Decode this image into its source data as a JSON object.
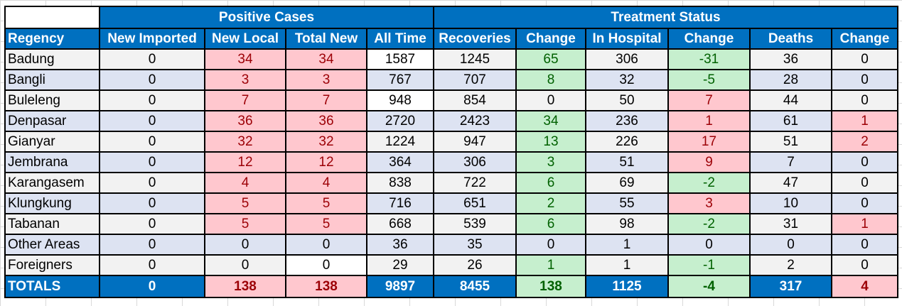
{
  "group_headers": {
    "positive_cases": "Positive Cases",
    "treatment_status": "Treatment Status"
  },
  "columns": [
    "Regency",
    "New Imported",
    "New Local",
    "Total New",
    "All Time",
    "Recoveries",
    "Change",
    "In Hospital",
    "Change",
    "Deaths",
    "Change"
  ],
  "rows": [
    {
      "regency": "Badung",
      "new_imported": "0",
      "new_local": "34",
      "total_new": "34",
      "all_time": "1587",
      "recoveries": "1245",
      "recoveries_change": "65",
      "in_hospital": "306",
      "hospital_change": "-31",
      "deaths": "36",
      "deaths_change": "0"
    },
    {
      "regency": "Bangli",
      "new_imported": "0",
      "new_local": "3",
      "total_new": "3",
      "all_time": "767",
      "recoveries": "707",
      "recoveries_change": "8",
      "in_hospital": "32",
      "hospital_change": "-5",
      "deaths": "28",
      "deaths_change": "0"
    },
    {
      "regency": "Buleleng",
      "new_imported": "0",
      "new_local": "7",
      "total_new": "7",
      "all_time": "948",
      "recoveries": "854",
      "recoveries_change": "0",
      "in_hospital": "50",
      "hospital_change": "7",
      "deaths": "44",
      "deaths_change": "0"
    },
    {
      "regency": "Denpasar",
      "new_imported": "0",
      "new_local": "36",
      "total_new": "36",
      "all_time": "2720",
      "recoveries": "2423",
      "recoveries_change": "34",
      "in_hospital": "236",
      "hospital_change": "1",
      "deaths": "61",
      "deaths_change": "1"
    },
    {
      "regency": "Gianyar",
      "new_imported": "0",
      "new_local": "32",
      "total_new": "32",
      "all_time": "1224",
      "recoveries": "947",
      "recoveries_change": "13",
      "in_hospital": "226",
      "hospital_change": "17",
      "deaths": "51",
      "deaths_change": "2"
    },
    {
      "regency": "Jembrana",
      "new_imported": "0",
      "new_local": "12",
      "total_new": "12",
      "all_time": "364",
      "recoveries": "306",
      "recoveries_change": "3",
      "in_hospital": "51",
      "hospital_change": "9",
      "deaths": "7",
      "deaths_change": "0"
    },
    {
      "regency": "Karangasem",
      "new_imported": "0",
      "new_local": "4",
      "total_new": "4",
      "all_time": "838",
      "recoveries": "722",
      "recoveries_change": "6",
      "in_hospital": "69",
      "hospital_change": "-2",
      "deaths": "47",
      "deaths_change": "0"
    },
    {
      "regency": "Klungkung",
      "new_imported": "0",
      "new_local": "5",
      "total_new": "5",
      "all_time": "716",
      "recoveries": "651",
      "recoveries_change": "2",
      "in_hospital": "55",
      "hospital_change": "3",
      "deaths": "10",
      "deaths_change": "0"
    },
    {
      "regency": "Tabanan",
      "new_imported": "0",
      "new_local": "5",
      "total_new": "5",
      "all_time": "668",
      "recoveries": "539",
      "recoveries_change": "6",
      "in_hospital": "98",
      "hospital_change": "-2",
      "deaths": "31",
      "deaths_change": "1"
    },
    {
      "regency": "Other Areas",
      "new_imported": "0",
      "new_local": "0",
      "total_new": "0",
      "all_time": "36",
      "recoveries": "35",
      "recoveries_change": "0",
      "in_hospital": "1",
      "hospital_change": "0",
      "deaths": "0",
      "deaths_change": "0"
    },
    {
      "regency": "Foreigners",
      "new_imported": "0",
      "new_local": "0",
      "total_new": "0",
      "all_time": "29",
      "recoveries": "26",
      "recoveries_change": "1",
      "in_hospital": "1",
      "hospital_change": "-1",
      "deaths": "2",
      "deaths_change": "0"
    }
  ],
  "totals": {
    "regency": "TOTALS",
    "new_imported": "0",
    "new_local": "138",
    "total_new": "138",
    "all_time": "9897",
    "recoveries": "8455",
    "recoveries_change": "138",
    "in_hospital": "1125",
    "hospital_change": "-4",
    "deaths": "317",
    "deaths_change": "4"
  },
  "colors": {
    "header_blue": "#0070c0",
    "bad_fill": "#ffc7ce",
    "bad_text": "#9c0006",
    "good_fill": "#c6efce",
    "good_text": "#006100",
    "row_light": "#f2f2f2",
    "row_blue": "#dde3f2"
  }
}
